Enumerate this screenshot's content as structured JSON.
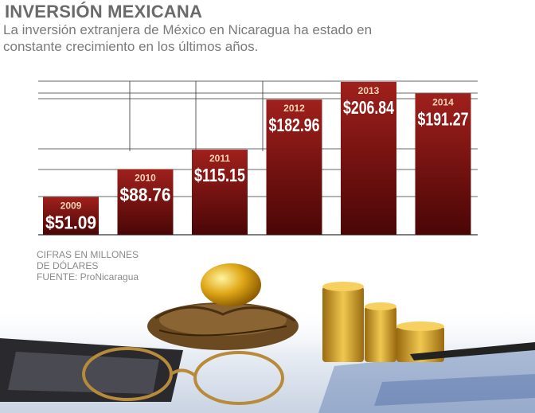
{
  "header": {
    "title": "INVERSIÓN MEXICANA",
    "subtitle": "La inversión extranjera de México en Nicaragua ha estado en constante crecimiento en los últimos años."
  },
  "notes": {
    "units": "CIFRAS EN MILLONES",
    "units_cont": "DE DÓLARES",
    "source": "FUENTE: ProNicaragua"
  },
  "colors": {
    "bar_top": "#a0201c",
    "bar_bottom": "#4a0606",
    "grid": "#333333",
    "text_gray": "#6a6a6a"
  },
  "chart_data": {
    "type": "bar",
    "title": "INVERSIÓN MEXICANA",
    "categories": [
      "2009",
      "2010",
      "2011",
      "2012",
      "2013",
      "2014"
    ],
    "values": [
      51.09,
      88.76,
      115.15,
      182.96,
      206.84,
      191.27
    ],
    "value_labels": [
      "$51.09",
      "$88.76",
      "$115.15",
      "$182.96",
      "$206.84",
      "$191.27"
    ],
    "xlabel": "",
    "ylabel": "",
    "ylim": [
      0,
      210
    ],
    "grid": true,
    "legend": "none"
  }
}
